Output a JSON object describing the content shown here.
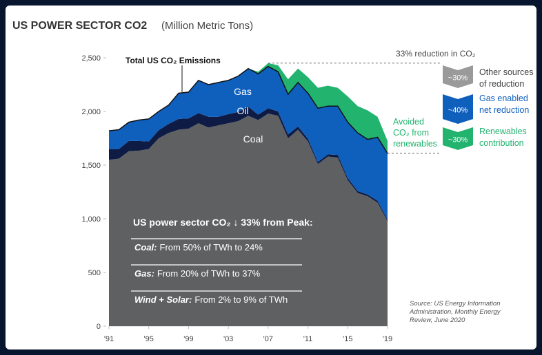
{
  "chart_data": {
    "type": "stacked-area",
    "title": "US POWER SECTOR CO2",
    "subtitle": "(Million Metric Tons)",
    "x": [
      1991,
      1992,
      1993,
      1994,
      1995,
      1996,
      1997,
      1998,
      1999,
      2000,
      2001,
      2002,
      2003,
      2004,
      2005,
      2006,
      2007,
      2008,
      2009,
      2010,
      2011,
      2012,
      2013,
      2014,
      2015,
      2016,
      2017,
      2018,
      2019
    ],
    "xlim": [
      1991,
      2019
    ],
    "xticks": [
      {
        "value": 1991,
        "label": "'91"
      },
      {
        "value": 1995,
        "label": "'95"
      },
      {
        "value": 1999,
        "label": "'99"
      },
      {
        "value": 2003,
        "label": "'03"
      },
      {
        "value": 2007,
        "label": "'07"
      },
      {
        "value": 2011,
        "label": "'11"
      },
      {
        "value": 2015,
        "label": "'15"
      },
      {
        "value": 2019,
        "label": "'19"
      }
    ],
    "ylim": [
      0,
      2500
    ],
    "yticks": [
      0,
      500,
      {
        "value": 1000,
        "label": "1,000"
      },
      {
        "value": 1500,
        "label": "1,500"
      },
      {
        "value": 2000,
        "label": "2,000"
      },
      {
        "value": 2500,
        "label": "2,500"
      }
    ],
    "series": [
      {
        "name": "Coal",
        "color": "#5f6062",
        "values": [
          1550,
          1560,
          1630,
          1635,
          1650,
          1750,
          1800,
          1830,
          1840,
          1890,
          1850,
          1870,
          1890,
          1910,
          1960,
          1920,
          1980,
          1960,
          1750,
          1830,
          1720,
          1510,
          1580,
          1570,
          1360,
          1240,
          1210,
          1150,
          975
        ]
      },
      {
        "name": "Oil",
        "color": "#0d1b45",
        "values": [
          100,
          90,
          95,
          90,
          70,
          75,
          85,
          100,
          95,
          95,
          100,
          80,
          85,
          85,
          85,
          50,
          50,
          40,
          35,
          30,
          25,
          20,
          20,
          25,
          20,
          18,
          16,
          18,
          15
        ]
      },
      {
        "name": "Gas",
        "color": "#0f5fbd",
        "values": [
          170,
          180,
          175,
          195,
          210,
          175,
          175,
          240,
          245,
          305,
          300,
          320,
          315,
          335,
          355,
          380,
          390,
          370,
          375,
          410,
          425,
          500,
          450,
          455,
          520,
          542,
          514,
          592,
          620
        ]
      },
      {
        "name": [
          "Avoided",
          "CO₂ from",
          "renewables"
        ],
        "color": "#22b36f",
        "values": [
          0,
          0,
          0,
          0,
          0,
          0,
          0,
          0,
          0,
          0,
          0,
          0,
          0,
          0,
          0,
          20,
          30,
          60,
          140,
          130,
          150,
          190,
          190,
          170,
          240,
          250,
          270,
          190,
          115
        ]
      }
    ],
    "total_label": "Total US CO₂ Emissions",
    "reduction_title": "33% reduction in CO₂",
    "reduction_parts": [
      {
        "share": "~30%",
        "color": "#9a9a9a",
        "label": [
          "Other sources",
          "of reduction"
        ],
        "label_color": "#444"
      },
      {
        "share": "~40%",
        "color": "#0f5fbd",
        "label": [
          "Gas enabled",
          "net reduction"
        ],
        "label_color": "#0f5fbd"
      },
      {
        "share": "~30%",
        "color": "#22b36f",
        "label": [
          "Renewables",
          "contribution"
        ],
        "label_color": "#22b36f"
      }
    ],
    "callout": {
      "headline": "US power sector CO₂ ↓ 33% from Peak:",
      "lines": [
        {
          "lead": "Coal:",
          "text": "From 50% of TWh to 24%"
        },
        {
          "lead": "Gas:",
          "text": "From 20% of TWh to 37%"
        },
        {
          "lead": "Wind + Solar:",
          "text": "From 2% to 9% of TWh"
        }
      ]
    },
    "source": [
      "Source: US Energy Information",
      "Administration, Monthly Energy",
      "Review, June 2020"
    ]
  }
}
